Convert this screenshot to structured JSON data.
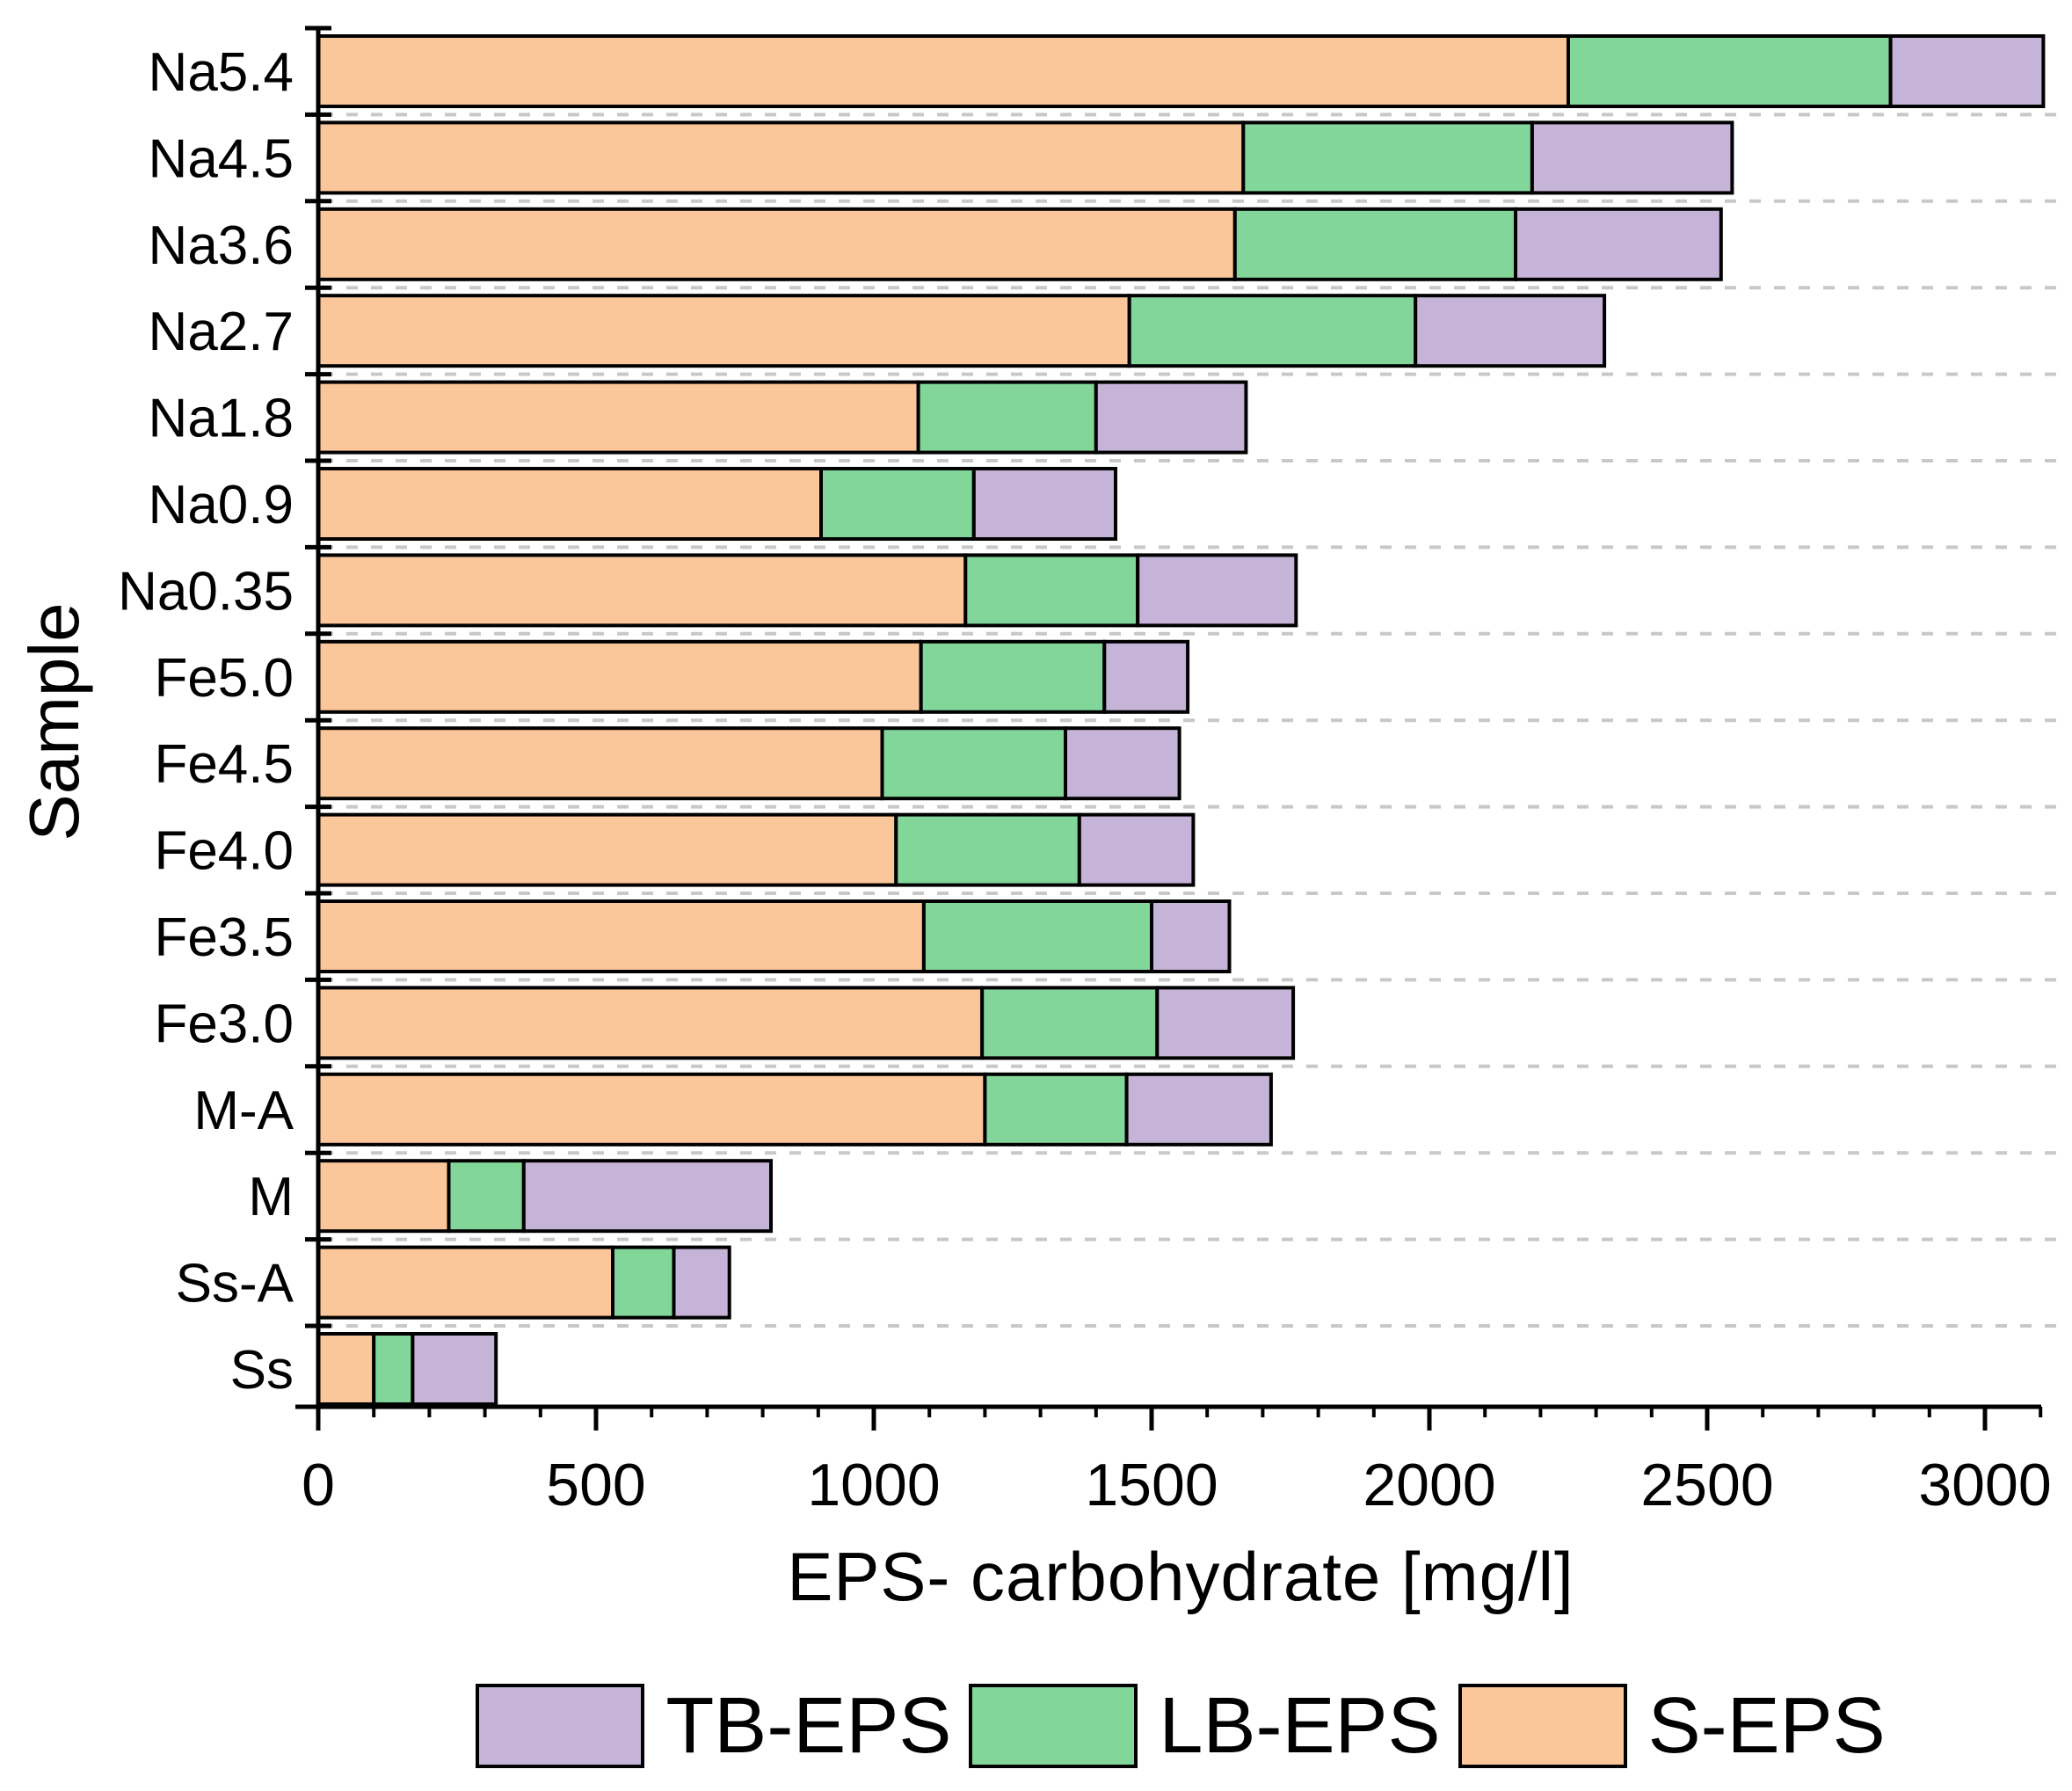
{
  "chart_data": {
    "type": "bar",
    "orientation": "horizontal",
    "stacked": true,
    "title": "",
    "xlabel": "EPS- carbohydrate [mg/l]",
    "ylabel": "Sample",
    "xlim": [
      0,
      3100
    ],
    "x_major_ticks": [
      0,
      500,
      1000,
      1500,
      2000,
      2500,
      3000
    ],
    "x_tick_labels": [
      "0",
      "500",
      "1000",
      "1500",
      "2000",
      "2500",
      "3000"
    ],
    "x_minor_tick_step": 100,
    "grid": "dashed-horizontal-between-categories",
    "legend_position": "bottom",
    "legend_order": [
      "TB-EPS",
      "LB-EPS",
      "S-EPS"
    ],
    "categories": [
      "Na5.4",
      "Na4.5",
      "Na3.6",
      "Na2.7",
      "Na1.8",
      "Na0.9",
      "Na0.35",
      "Fe5.0",
      "Fe4.5",
      "Fe4.0",
      "Fe3.5",
      "Fe3.0",
      "M-A",
      "M",
      "Ss-A",
      "Ss"
    ],
    "series": [
      {
        "name": "S-EPS",
        "color": "#FBC69A",
        "values": [
          2250,
          1665,
          1650,
          1460,
          1080,
          905,
          1165,
          1085,
          1015,
          1040,
          1090,
          1195,
          1200,
          235,
          530,
          100
        ]
      },
      {
        "name": "LB-EPS",
        "color": "#82D699",
        "values": [
          580,
          520,
          505,
          515,
          320,
          275,
          310,
          330,
          330,
          330,
          410,
          315,
          255,
          135,
          110,
          70
        ]
      },
      {
        "name": "TB-EPS",
        "color": "#C6B3D8",
        "values": [
          275,
          360,
          370,
          340,
          270,
          255,
          285,
          150,
          205,
          205,
          140,
          245,
          260,
          445,
          100,
          150
        ]
      }
    ],
    "colors": {
      "bar_border": "#000000",
      "axis": "#000000",
      "gridline": "#C8C8C8",
      "background": "#FFFFFF"
    }
  }
}
